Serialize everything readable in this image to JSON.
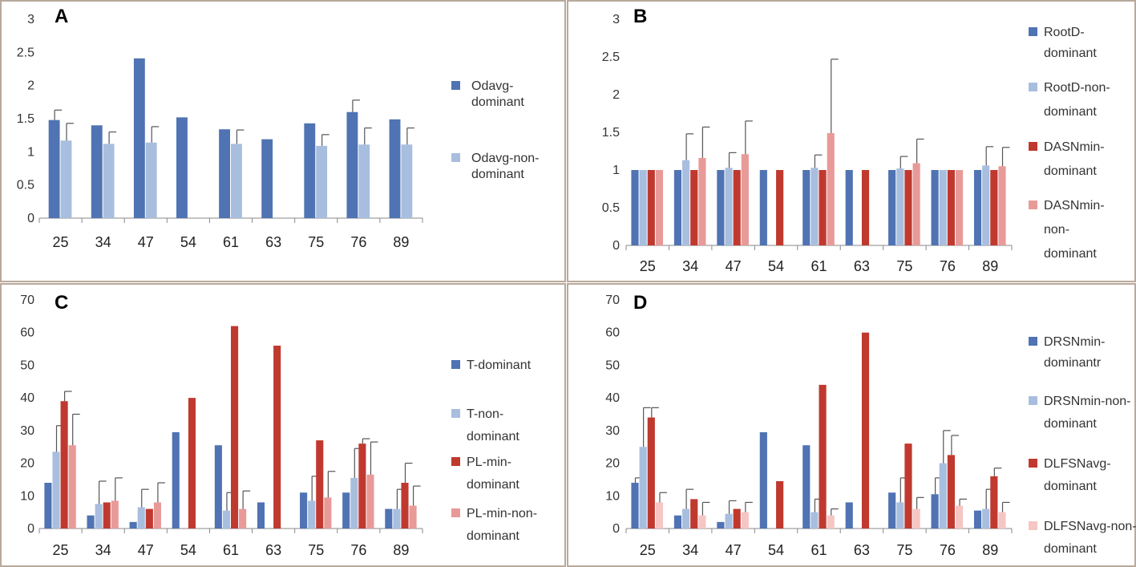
{
  "colors": {
    "blue_dark": "#4f73b3",
    "blue_light": "#a8bedf",
    "red_dark": "#c0392f",
    "red_light": "#e89a98",
    "pink_light": "#f5c6c4",
    "frame": "#b9a99b"
  },
  "chart_data": [
    {
      "panel": "A",
      "type": "bar",
      "categories": [
        "25",
        "34",
        "47",
        "54",
        "61",
        "63",
        "75",
        "76",
        "89"
      ],
      "ylim": [
        0,
        3
      ],
      "ytick_labels": [
        "0",
        "0.5",
        "1",
        "1.5",
        "2",
        "2.5",
        "3"
      ],
      "ytick_values": [
        0,
        0.5,
        1,
        1.5,
        2,
        2.5,
        3
      ],
      "legend": [
        "Odavg-dominant",
        "Odavg-non-dominant"
      ],
      "series": [
        {
          "name": "Odavg-dominant",
          "color": "#4f73b3",
          "values": [
            1.48,
            1.4,
            2.41,
            1.52,
            1.34,
            1.19,
            1.43,
            1.6,
            1.49
          ],
          "errors": [
            0.15,
            null,
            null,
            null,
            null,
            null,
            null,
            0.18,
            null
          ]
        },
        {
          "name": "Odavg-non-dominant",
          "color": "#a8bedf",
          "values": [
            1.17,
            1.12,
            1.14,
            null,
            1.12,
            null,
            1.09,
            1.11,
            1.11
          ],
          "errors": [
            0.26,
            0.18,
            0.24,
            null,
            0.21,
            null,
            0.17,
            0.25,
            0.25
          ]
        }
      ]
    },
    {
      "panel": "B",
      "type": "bar",
      "categories": [
        "25",
        "34",
        "47",
        "54",
        "61",
        "63",
        "75",
        "76",
        "89"
      ],
      "ylim": [
        0,
        3
      ],
      "ytick_labels": [
        "0",
        "0.5",
        "1",
        "1.5",
        "2",
        "2.5",
        "3"
      ],
      "ytick_values": [
        0,
        0.5,
        1,
        1.5,
        2,
        2.5,
        3
      ],
      "legend": [
        "RootD-dominant",
        "RootD-non-dominant",
        "DASNmin-dominant",
        "DASNmin-non-dominant"
      ],
      "series": [
        {
          "name": "RootD-dominant",
          "color": "#4f73b3",
          "values": [
            1,
            1,
            1,
            1,
            1,
            1,
            1,
            1,
            1
          ],
          "errors": [
            null,
            null,
            null,
            null,
            null,
            null,
            null,
            null,
            null
          ]
        },
        {
          "name": "RootD-non-dominant",
          "color": "#a8bedf",
          "values": [
            1,
            1.13,
            1.03,
            null,
            1.03,
            null,
            1.02,
            1,
            1.06
          ],
          "errors": [
            null,
            0.35,
            0.2,
            null,
            0.17,
            null,
            0.16,
            null,
            0.25
          ]
        },
        {
          "name": "DASNmin-dominant",
          "color": "#c0392f",
          "values": [
            1,
            1,
            1,
            1,
            1,
            1,
            1,
            1,
            1
          ],
          "errors": [
            null,
            null,
            null,
            null,
            null,
            null,
            null,
            null,
            null
          ]
        },
        {
          "name": "DASNmin-non-dominant",
          "color": "#e89a98",
          "values": [
            1,
            1.16,
            1.21,
            null,
            1.49,
            null,
            1.09,
            1,
            1.05
          ],
          "errors": [
            null,
            0.41,
            0.44,
            null,
            0.98,
            null,
            0.32,
            null,
            0.25
          ]
        }
      ]
    },
    {
      "panel": "C",
      "type": "bar",
      "categories": [
        "25",
        "34",
        "47",
        "54",
        "61",
        "63",
        "75",
        "76",
        "89"
      ],
      "ylim": [
        0,
        70
      ],
      "ytick_labels": [
        "0",
        "10",
        "20",
        "30",
        "40",
        "50",
        "60",
        "70"
      ],
      "ytick_values": [
        0,
        10,
        20,
        30,
        40,
        50,
        60,
        70
      ],
      "legend": [
        "T-dominant",
        "T-non-dominant",
        "PL-min-dominant",
        "PL-min-non-dominant"
      ],
      "series": [
        {
          "name": "T-dominant",
          "color": "#4f73b3",
          "values": [
            14,
            4,
            2,
            29.5,
            25.5,
            8,
            11,
            11,
            6
          ],
          "errors": [
            null,
            null,
            null,
            null,
            null,
            null,
            null,
            null,
            null
          ]
        },
        {
          "name": "T-non-dominant",
          "color": "#a8bedf",
          "values": [
            23.5,
            7.5,
            6.5,
            null,
            5.5,
            null,
            8.5,
            15.5,
            6
          ],
          "errors": [
            8,
            7,
            5.5,
            null,
            5.5,
            null,
            7.5,
            9,
            6
          ]
        },
        {
          "name": "PL-min-dominant",
          "color": "#c0392f",
          "values": [
            39,
            8,
            6,
            40,
            62,
            56,
            27,
            26,
            14
          ],
          "errors": [
            3,
            null,
            null,
            null,
            null,
            null,
            null,
            1.5,
            6
          ]
        },
        {
          "name": "PL-min-non-dominant",
          "color": "#e89a98",
          "values": [
            25.5,
            8.5,
            8,
            null,
            6,
            null,
            9.5,
            16.5,
            7
          ],
          "errors": [
            9.5,
            7,
            6,
            null,
            5.5,
            null,
            8,
            10,
            6
          ]
        }
      ]
    },
    {
      "panel": "D",
      "type": "bar",
      "categories": [
        "25",
        "34",
        "47",
        "54",
        "61",
        "63",
        "75",
        "76",
        "89"
      ],
      "ylim": [
        0,
        70
      ],
      "ytick_labels": [
        "0",
        "10",
        "20",
        "30",
        "40",
        "50",
        "60",
        "70"
      ],
      "ytick_values": [
        0,
        10,
        20,
        30,
        40,
        50,
        60,
        70
      ],
      "legend": [
        "DRSNmin-dominantr",
        "DRSNmin-non-dominant",
        "DLFSNavg-dominant",
        "DLFSNavg-non-dominant"
      ],
      "series": [
        {
          "name": "DRSNmin-dominantr",
          "color": "#4f73b3",
          "values": [
            14,
            4,
            2,
            29.5,
            25.5,
            8,
            11,
            10.5,
            5.5
          ],
          "errors": [
            1.5,
            null,
            null,
            null,
            null,
            null,
            null,
            5,
            null
          ]
        },
        {
          "name": "DRSNmin-non-dominant",
          "color": "#a8bedf",
          "values": [
            25,
            6,
            4.5,
            null,
            5,
            null,
            8,
            20,
            6
          ],
          "errors": [
            12,
            6,
            4,
            null,
            4,
            null,
            7.5,
            10,
            6
          ]
        },
        {
          "name": "DLFSNavg-dominant",
          "color": "#c0392f",
          "values": [
            34,
            9,
            6,
            14.5,
            44,
            60,
            26,
            22.5,
            16
          ],
          "errors": [
            3,
            null,
            null,
            null,
            null,
            null,
            null,
            6,
            2.5
          ]
        },
        {
          "name": "DLFSNavg-non-dominant",
          "color": "#f5c6c4",
          "values": [
            8,
            4,
            5,
            null,
            4,
            null,
            6,
            7,
            5
          ],
          "errors": [
            3,
            4,
            3,
            null,
            2,
            null,
            3.5,
            2,
            3
          ]
        }
      ]
    }
  ]
}
